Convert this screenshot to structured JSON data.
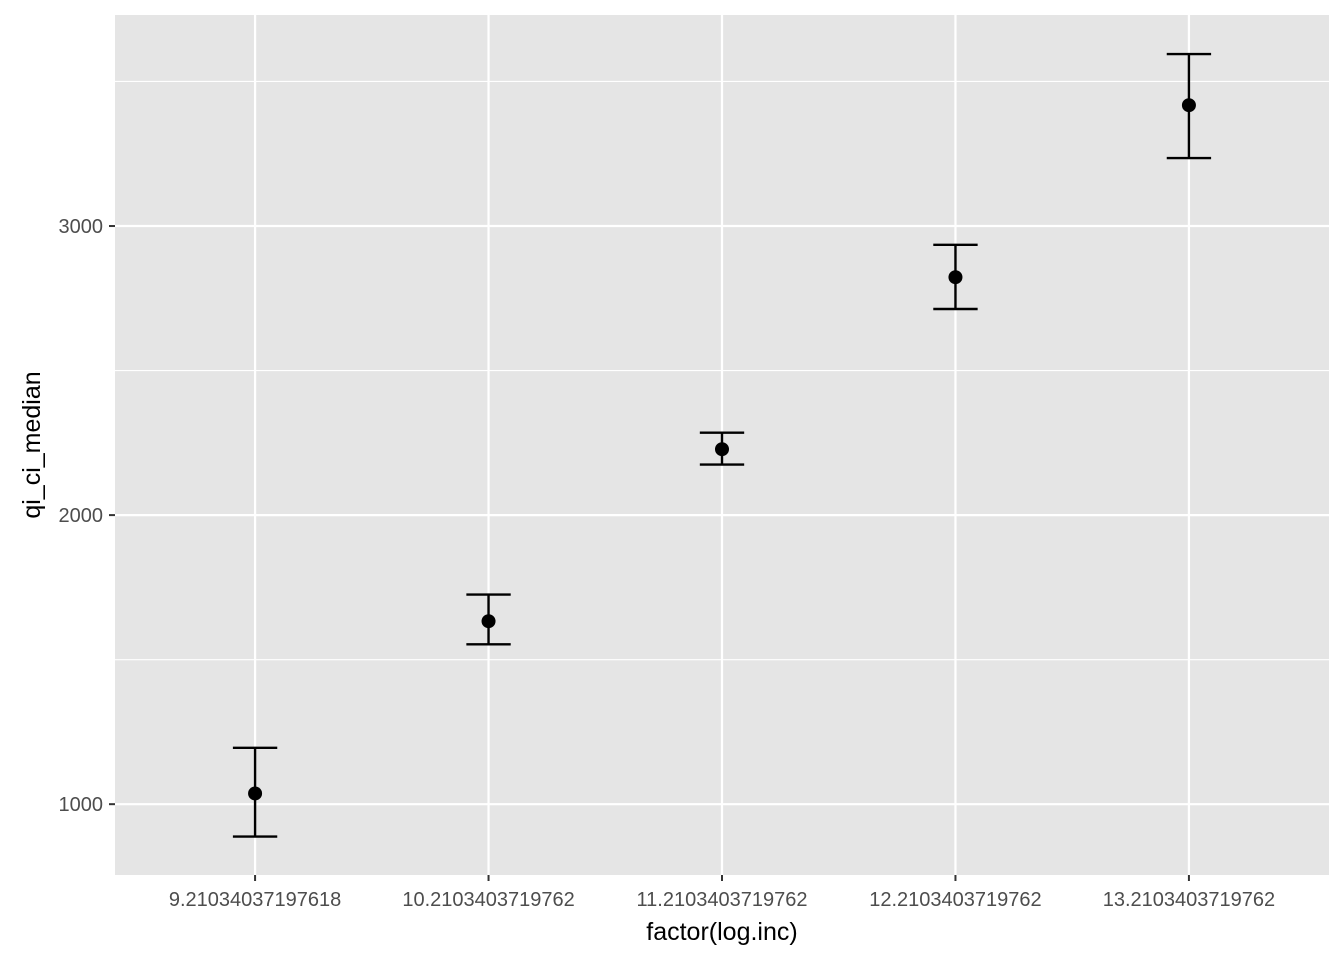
{
  "chart_data": {
    "type": "scatter",
    "subtype": "errorbar",
    "title": "",
    "xlabel": "factor(log.inc)",
    "ylabel": "qi_ci_median",
    "categories": [
      "9.21034037197618",
      "10.2103403719762",
      "11.2103403719762",
      "12.2103403719762",
      "13.2103403719762"
    ],
    "series": [
      {
        "values": [
          1037,
          1633,
          2228,
          2823,
          3418
        ],
        "lower": [
          888,
          1553,
          2175,
          2713,
          3235
        ],
        "upper": [
          1195,
          1725,
          2285,
          2935,
          3595
        ]
      }
    ],
    "ylim": [
      755,
      3730
    ],
    "yticks": [
      1000,
      2000,
      3000
    ],
    "ytick_labels": [
      "1000",
      "2000",
      "3000"
    ],
    "yminor": [
      1500,
      2500,
      3500
    ],
    "grid": true,
    "legend": "none",
    "colors": {
      "panel": "#e5e5e5",
      "grid": "#ffffff",
      "marks": "#000000",
      "tick_text": "#4d4d4d",
      "axis_text": "#000000"
    }
  }
}
